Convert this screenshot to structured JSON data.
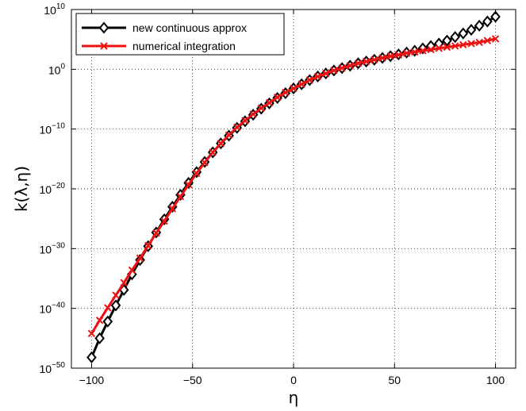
{
  "chart_data": {
    "type": "line",
    "xlabel": "η",
    "ylabel": "k(λ,η)",
    "xlim": [
      -110,
      110
    ],
    "ylim_log10": [
      -50,
      10
    ],
    "yscale": "log",
    "grid": true,
    "legend_position": "top-left",
    "x_ticks": [
      "−100",
      "−50",
      "0",
      "50",
      "100"
    ],
    "y_ticks": [
      {
        "base": "10",
        "exp": "10"
      },
      {
        "base": "10",
        "exp": "0"
      },
      {
        "base": "10",
        "exp": "−10"
      },
      {
        "base": "10",
        "exp": "−20"
      },
      {
        "base": "10",
        "exp": "−30"
      },
      {
        "base": "10",
        "exp": "−40"
      },
      {
        "base": "10",
        "exp": "−50"
      }
    ],
    "x": [
      -100,
      -96,
      -92,
      -88,
      -84,
      -80,
      -76,
      -72,
      -68,
      -64,
      -60,
      -56,
      -52,
      -48,
      -44,
      -40,
      -36,
      -32,
      -28,
      -24,
      -20,
      -16,
      -12,
      -8,
      -4,
      0,
      4,
      8,
      12,
      16,
      20,
      24,
      28,
      32,
      36,
      40,
      44,
      48,
      52,
      56,
      60,
      64,
      68,
      72,
      76,
      80,
      84,
      88,
      92,
      96,
      100
    ],
    "series": [
      {
        "name": "new continuous approx",
        "color": "#000000",
        "marker": "diamond",
        "log10_values": [
          -48.2,
          -45.0,
          -42.2,
          -39.5,
          -36.9,
          -34.3,
          -31.9,
          -29.6,
          -27.3,
          -25.1,
          -23.0,
          -21.0,
          -19.0,
          -17.2,
          -15.5,
          -13.9,
          -12.4,
          -11.1,
          -9.8,
          -8.7,
          -7.6,
          -6.6,
          -5.7,
          -4.8,
          -4.0,
          -3.2,
          -2.5,
          -1.8,
          -1.2,
          -0.7,
          -0.2,
          0.2,
          0.6,
          1.0,
          1.3,
          1.6,
          1.9,
          2.2,
          2.5,
          2.8,
          3.1,
          3.5,
          3.9,
          4.3,
          4.8,
          5.4,
          6.0,
          6.6,
          7.3,
          8.0,
          8.8
        ]
      },
      {
        "name": "numerical integration",
        "color": "#ee1111",
        "marker": "x",
        "log10_values": [
          -44.2,
          -42.0,
          -39.9,
          -37.8,
          -35.7,
          -33.6,
          -31.6,
          -29.5,
          -27.4,
          -25.4,
          -23.3,
          -21.3,
          -19.3,
          -17.4,
          -15.6,
          -13.9,
          -12.4,
          -11.0,
          -9.7,
          -8.6,
          -7.5,
          -6.5,
          -5.6,
          -4.7,
          -3.9,
          -3.2,
          -2.5,
          -1.8,
          -1.2,
          -0.7,
          -0.2,
          0.2,
          0.6,
          1.0,
          1.3,
          1.6,
          1.9,
          2.2,
          2.4,
          2.7,
          2.9,
          3.1,
          3.3,
          3.5,
          3.7,
          3.9,
          4.1,
          4.3,
          4.5,
          4.8,
          5.1
        ]
      }
    ]
  }
}
